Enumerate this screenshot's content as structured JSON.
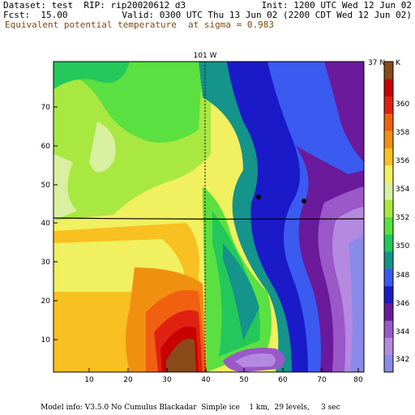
{
  "header": {
    "dataset": "Dataset: test  RIP: rip20020612 d3",
    "init": "Init: 1200 UTC Wed 12 Jun 02",
    "fcst": "Fcst:  15.00",
    "valid": "Valid: 0300 UTC Thu 13 Jun 02 (2200 CDT Wed 12 Jun 02)",
    "field": "Equivalent potential temperature",
    "level": "at sigma = 0.983"
  },
  "map": {
    "meridian_label": "101 W",
    "parallel_label": "37 N",
    "x_ticks": [
      "10",
      "20",
      "30",
      "40",
      "50",
      "60",
      "70",
      "80"
    ],
    "y_ticks": [
      "10",
      "20",
      "30",
      "40",
      "50",
      "60",
      "70"
    ]
  },
  "colorbar": {
    "unit": "K",
    "labels": [
      "342",
      "344",
      "346",
      "348",
      "350",
      "352",
      "354",
      "356",
      "358",
      "360"
    ],
    "colors": [
      "#8a8ae8",
      "#b48ae0",
      "#9a58c8",
      "#6a1a9a",
      "#1a1ac8",
      "#3a5af0",
      "#14948a",
      "#24c85a",
      "#5ae040",
      "#a8e840",
      "#d8f0a0",
      "#f0f060",
      "#f8c020",
      "#f09010",
      "#f06010",
      "#e02010",
      "#c80000",
      "#8a4a1a"
    ]
  },
  "footer": {
    "text": "Model info: V3.5.0 No Cumulus Blackadar  Simple ice    1 km,  29 levels,     3 sec"
  }
}
